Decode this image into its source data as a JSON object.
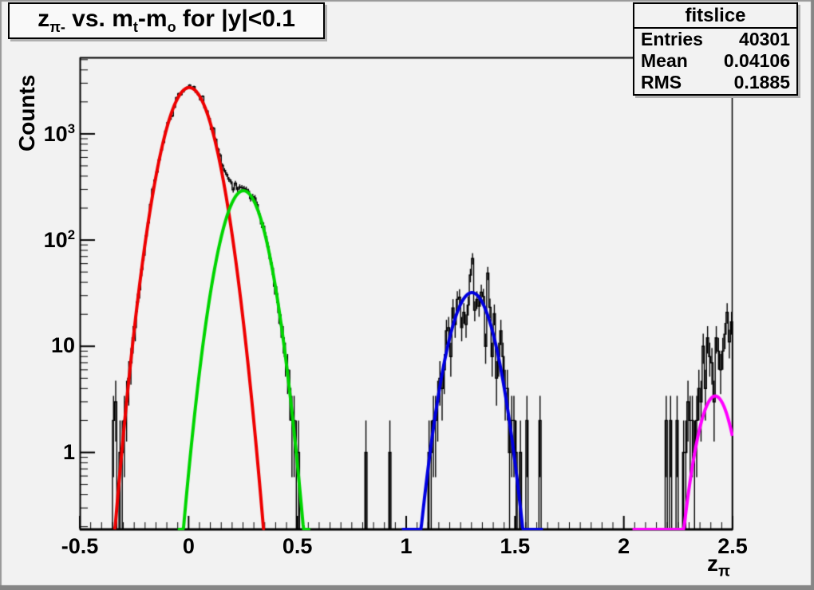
{
  "canvas": {
    "background": "#f2f2f2",
    "border_light": "#9a9a9a",
    "border_dark": "#868686",
    "frame_color": "#000000"
  },
  "title": {
    "plain_text": "z_pi- vs. m_t-m_o for |y|<0.1",
    "segments": [
      {
        "t": "z"
      },
      {
        "sub": "π-"
      },
      {
        "t": " vs. m"
      },
      {
        "sub": "t"
      },
      {
        "t": "-m"
      },
      {
        "sub": "o"
      },
      {
        "t": " for |y|<0.1"
      }
    ]
  },
  "stats": {
    "title": "fitslice",
    "rows": [
      {
        "label": "Entries",
        "value": "40301"
      },
      {
        "label": "Mean",
        "value": "0.04106"
      },
      {
        "label": "RMS",
        "value": "0.1885"
      }
    ]
  },
  "axes": {
    "x": {
      "title": "z",
      "title_sub": "π",
      "min": -0.5,
      "max": 2.5,
      "minor_step": 0.05,
      "ticks": [
        {
          "v": -0.5,
          "label": "-0.5"
        },
        {
          "v": 0,
          "label": "0"
        },
        {
          "v": 0.5,
          "label": "0.5"
        },
        {
          "v": 1,
          "label": "1"
        },
        {
          "v": 1.5,
          "label": "1.5"
        },
        {
          "v": 2,
          "label": "2"
        },
        {
          "v": 2.5,
          "label": "2.5"
        }
      ]
    },
    "y": {
      "title": "Counts",
      "scale": "log",
      "min": 0.185,
      "max": 5250,
      "ticks": [
        {
          "v": 1,
          "base": "1",
          "sup": ""
        },
        {
          "v": 10,
          "base": "10",
          "sup": ""
        },
        {
          "v": 100,
          "base": "10",
          "sup": "2"
        },
        {
          "v": 1000,
          "base": "10",
          "sup": "3"
        }
      ]
    }
  },
  "chart_data": {
    "type": "histogram",
    "title": "z_pi- vs. m_t-m_o for |y|<0.1",
    "xlabel": "z_pi",
    "ylabel": "Counts",
    "x_range": [
      -0.5,
      2.5
    ],
    "y_scale": "log",
    "y_range": [
      0.185,
      5250
    ],
    "bin_width": 0.01,
    "entries": 40301,
    "mean": 0.04106,
    "rms": 0.1885,
    "grid": false,
    "fits": [
      {
        "name": "red-gaussian",
        "color": "#ee0000",
        "amplitude": 2730,
        "mean": 0.003,
        "sigma": 0.078,
        "range": [
          -0.34,
          0.35
        ]
      },
      {
        "name": "green-gaussian",
        "color": "#00d500",
        "amplitude": 292,
        "mean": 0.252,
        "sigma": 0.072,
        "range": [
          -0.05,
          0.56
        ]
      },
      {
        "name": "blue-gaussian",
        "color": "#0000e0",
        "amplitude": 32,
        "mean": 1.302,
        "sigma": 0.073,
        "range": [
          0.98,
          1.63
        ]
      },
      {
        "name": "magenta-gaussian",
        "color": "#ff00ff",
        "amplitude": 3.4,
        "mean": 2.42,
        "sigma": 0.06,
        "range": [
          2.04,
          2.5
        ]
      }
    ],
    "histogram": {
      "color": "#000000",
      "peaks_note": "main peak ~2800 at z=0 with shoulder ~300 at z=0.25; cluster ~30-50 at z=1.3; cluster ~2-13 at z=2.2-2.5",
      "regions": [
        {
          "range": [
            -0.345,
            0.555
          ],
          "model": [
            "red-gaussian",
            "green-gaussian"
          ],
          "noise": 0.06,
          "seed": 3
        },
        {
          "range": [
            1.085,
            1.535
          ],
          "model": [
            "blue-gaussian"
          ],
          "noise": 0.45,
          "seed": 11
        },
        {
          "range": [
            2.26,
            2.495
          ],
          "model": [
            {
              "amplitude": 9,
              "mean": 2.44,
              "sigma": 0.075
            }
          ],
          "noise": 0.55,
          "seed": 23
        }
      ],
      "extra_bins": [
        [
          -0.345,
          2
        ],
        [
          -0.335,
          3
        ],
        [
          0.815,
          1
        ],
        [
          0.925,
          1
        ],
        [
          1.555,
          2
        ],
        [
          1.615,
          2
        ],
        [
          2.195,
          2
        ],
        [
          2.215,
          2
        ],
        [
          2.245,
          2
        ]
      ]
    }
  }
}
